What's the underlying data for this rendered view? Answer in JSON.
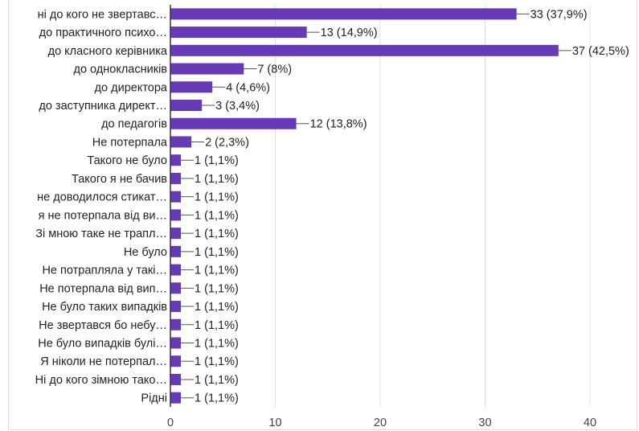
{
  "chart_data": {
    "type": "bar",
    "orientation": "horizontal",
    "categories": [
      "ні до кого не звертавс…",
      "до практичного психо…",
      "до класного керівника",
      "до однокласників",
      "до директора",
      "до заступника директ…",
      "до педагогів",
      "Не потерпала",
      "Такого не було",
      "Такого я не бачив",
      "не доводилося стикат…",
      "я не потерпала від ви…",
      "Зі мною таке не трапл…",
      "Не було",
      "Не потрапляла у такі…",
      "Не потерпала від вип…",
      "Не було таких випадків",
      "Не звертався бо небу…",
      "Не було випадків булі…",
      "Я ніколи не потерпал…",
      "Ні до кого зімною тако…",
      "Рідні"
    ],
    "values": [
      33,
      13,
      37,
      7,
      4,
      3,
      12,
      2,
      1,
      1,
      1,
      1,
      1,
      1,
      1,
      1,
      1,
      1,
      1,
      1,
      1,
      1
    ],
    "value_labels": [
      "33 (37,9%)",
      "13 (14,9%)",
      "37 (42,5%)",
      "7 (8%)",
      "4 (4,6%)",
      "3 (3,4%)",
      "12 (13,8%)",
      "2 (2,3%)",
      "1 (1,1%)",
      "1 (1,1%)",
      "1 (1,1%)",
      "1 (1,1%)",
      "1 (1,1%)",
      "1 (1,1%)",
      "1 (1,1%)",
      "1 (1,1%)",
      "1 (1,1%)",
      "1 (1,1%)",
      "1 (1,1%)",
      "1 (1,1%)",
      "1 (1,1%)",
      "1 (1,1%)"
    ],
    "x_ticks": [
      0,
      10,
      20,
      30,
      40
    ],
    "xlim": [
      0,
      40
    ],
    "grid": true,
    "bar_color": "#673ab7",
    "title": "",
    "xlabel": "",
    "ylabel": ""
  }
}
